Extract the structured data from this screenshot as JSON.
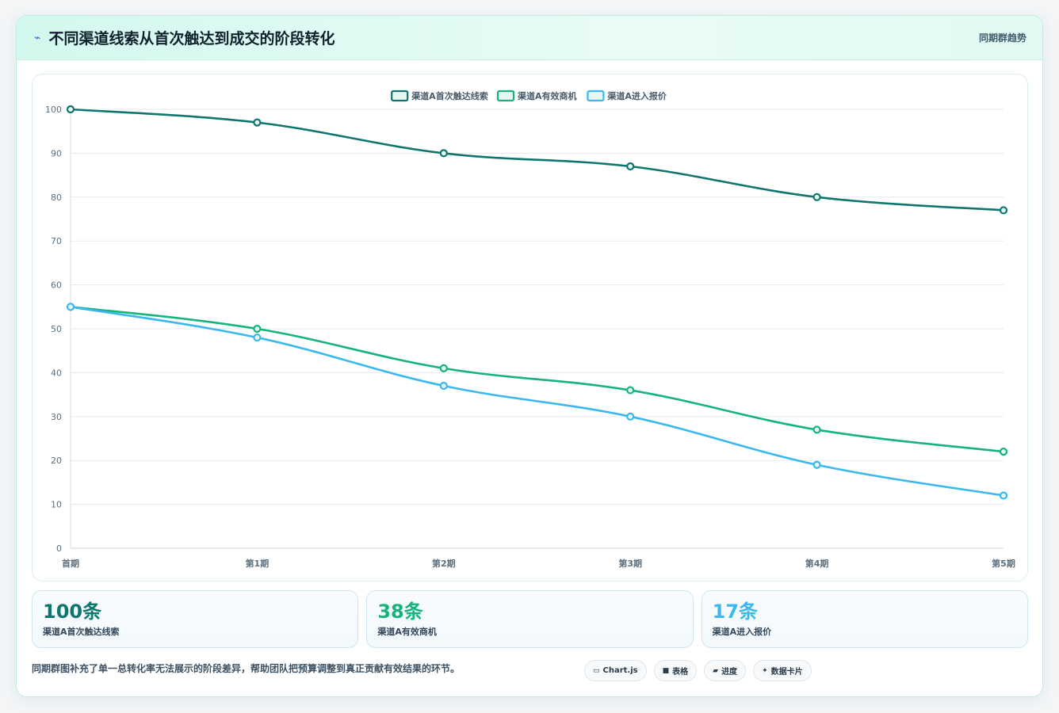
{
  "header": {
    "title": "不同渠道线索从首次触达到成交的阶段转化",
    "tag": "同期群趋势"
  },
  "chart_data": {
    "type": "line",
    "categories": [
      "首期",
      "第1期",
      "第2期",
      "第3期",
      "第4期",
      "第5期"
    ],
    "ylim": [
      0,
      100
    ],
    "yticks": [
      0,
      10,
      20,
      30,
      40,
      50,
      60,
      70,
      80,
      90,
      100
    ],
    "grid": true,
    "legend_position": "top-center",
    "series": [
      {
        "name": "渠道A首次触达线索",
        "color": "#0f766e",
        "values": [
          100,
          97,
          90,
          87,
          80,
          77
        ]
      },
      {
        "name": "渠道A有效商机",
        "color": "#16b47a",
        "values": [
          55,
          50,
          41,
          36,
          27,
          22
        ]
      },
      {
        "name": "渠道A进入报价",
        "color": "#3bb8ee",
        "values": [
          55,
          48,
          37,
          30,
          19,
          12
        ]
      }
    ]
  },
  "stats": [
    {
      "value": "100条",
      "label": "渠道A首次触达线索",
      "color": "#0f766e"
    },
    {
      "value": "38条",
      "label": "渠道A有效商机",
      "color": "#16b47a"
    },
    {
      "value": "17条",
      "label": "渠道A进入报价",
      "color": "#3bb8ee"
    }
  ],
  "footer": {
    "note": "同期群图补充了单一总转化率无法展示的阶段差异，帮助团队把预算调整到真正贡献有效结果的环节。",
    "pills": [
      {
        "icon": "▭",
        "label": "Chart.js"
      },
      {
        "icon": "■",
        "label": "表格"
      },
      {
        "icon": "▰",
        "label": "进度"
      },
      {
        "icon": "✦",
        "label": "数据卡片"
      }
    ]
  }
}
